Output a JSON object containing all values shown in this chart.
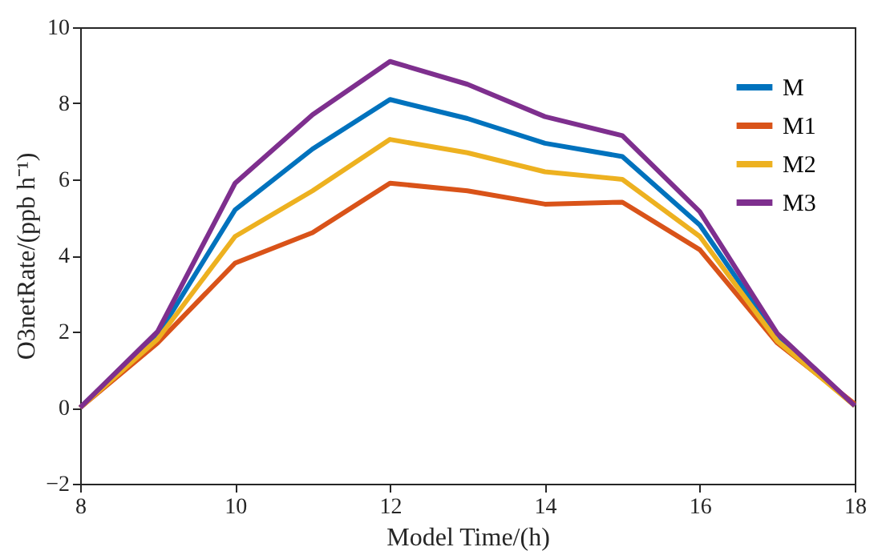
{
  "chart_data": {
    "type": "line",
    "xlabel": "Model Time/(h)",
    "ylabel": "O3netRate/(ppb h⁻¹)",
    "x": [
      8,
      9,
      10,
      11,
      12,
      13,
      14,
      15,
      16,
      17,
      18
    ],
    "series": [
      {
        "name": "M",
        "color": "#0072bd",
        "values": [
          0,
          1.9,
          5.2,
          6.8,
          8.1,
          7.6,
          6.95,
          6.6,
          4.8,
          1.85,
          0.05
        ]
      },
      {
        "name": "M1",
        "color": "#d95319",
        "values": [
          0,
          1.7,
          3.8,
          4.6,
          5.9,
          5.7,
          5.35,
          5.4,
          4.15,
          1.7,
          0.1
        ]
      },
      {
        "name": "M2",
        "color": "#edb120",
        "values": [
          0,
          1.8,
          4.5,
          5.7,
          7.05,
          6.7,
          6.2,
          6.0,
          4.5,
          1.75,
          0.05
        ]
      },
      {
        "name": "M3",
        "color": "#7e2f8e",
        "values": [
          0,
          2.0,
          5.9,
          7.7,
          9.1,
          8.5,
          7.65,
          7.15,
          5.15,
          1.95,
          0.05
        ]
      }
    ],
    "xlim": [
      8,
      18
    ],
    "xticks": [
      8,
      10,
      12,
      14,
      16,
      18
    ],
    "ylim": [
      -2,
      10
    ],
    "yticks": [
      -2,
      0,
      2,
      4,
      6,
      8,
      10
    ],
    "legend": "top right",
    "line_style": "solid",
    "marker": "none"
  }
}
